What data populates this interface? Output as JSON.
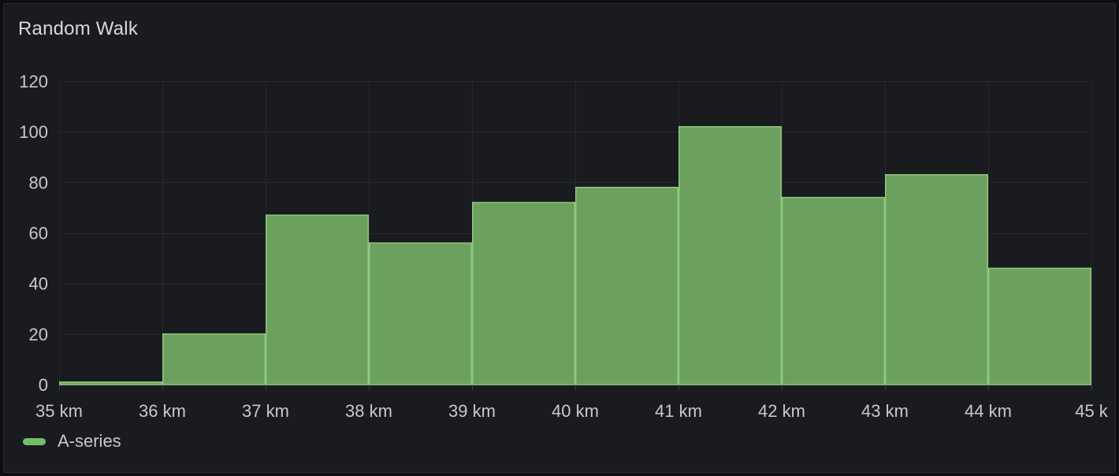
{
  "panel": {
    "title": "Random Walk",
    "legend": {
      "items": [
        {
          "label": "A-series",
          "color": "#73bf69"
        }
      ],
      "position": "bottom-left"
    }
  },
  "colors": {
    "page_bg": "#0d0e11",
    "panel_bg": "#1a1b1f",
    "panel_border": "#2c2e33",
    "title_text": "#d8d9dd",
    "axis_text": "#c8c9cd",
    "grid": "#26282d",
    "axis_line": "#30333a",
    "tick": "#3a3d44",
    "bar_fill": "#6ca05f",
    "bar_stroke": "#8cc97c",
    "legend_swatch": "#73bf69"
  },
  "chart_data": {
    "type": "bar",
    "title": "Random Walk",
    "series": [
      {
        "name": "A-series",
        "color": "#73bf69",
        "values": [
          1,
          20,
          67,
          56,
          72,
          78,
          102,
          74,
          83,
          46
        ]
      }
    ],
    "bucket_edges_km": [
      35,
      36,
      37,
      38,
      39,
      40,
      41,
      42,
      43,
      44,
      45
    ],
    "x_tick_labels": [
      "35 km",
      "36 km",
      "37 km",
      "38 km",
      "39 km",
      "40 km",
      "41 km",
      "42 km",
      "43 km",
      "44 km",
      "45 k"
    ],
    "y_ticks": [
      0,
      20,
      40,
      60,
      80,
      100,
      120
    ],
    "ylim": [
      0,
      120
    ],
    "xlim_km": [
      35,
      45
    ],
    "xlabel": "",
    "ylabel": "",
    "grid": true,
    "legend_position": "bottom-left"
  }
}
